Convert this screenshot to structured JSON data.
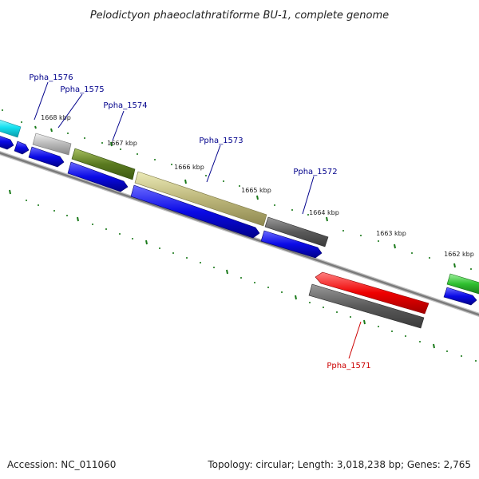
{
  "title": "Pelodictyon phaeoclathratiforme BU-1, complete genome",
  "footer": {
    "accession": "Accession: NC_011060",
    "summary": "Topology: circular; Length: 3,018,238 bp; Genes: 2,765"
  },
  "colors": {
    "label_forward": "#00008b",
    "label_reverse": "#cc0000",
    "tick": "#1a7a1a",
    "backbone": "#808080",
    "cds_blue": "#0a0ae6"
  },
  "kbp_marks": [
    "1668 kbp",
    "1667 kbp",
    "1666 kbp",
    "1665 kbp",
    "1664 kbp",
    "1663 kbp",
    "1662 kbp"
  ],
  "genes": [
    {
      "label": "Ppha_1576",
      "strand": "forward"
    },
    {
      "label": "Ppha_1575",
      "strand": "forward"
    },
    {
      "label": "Ppha_1574",
      "strand": "forward"
    },
    {
      "label": "Ppha_1573",
      "strand": "forward"
    },
    {
      "label": "Ppha_1572",
      "strand": "forward"
    },
    {
      "label": "Ppha_1571",
      "strand": "reverse"
    }
  ]
}
